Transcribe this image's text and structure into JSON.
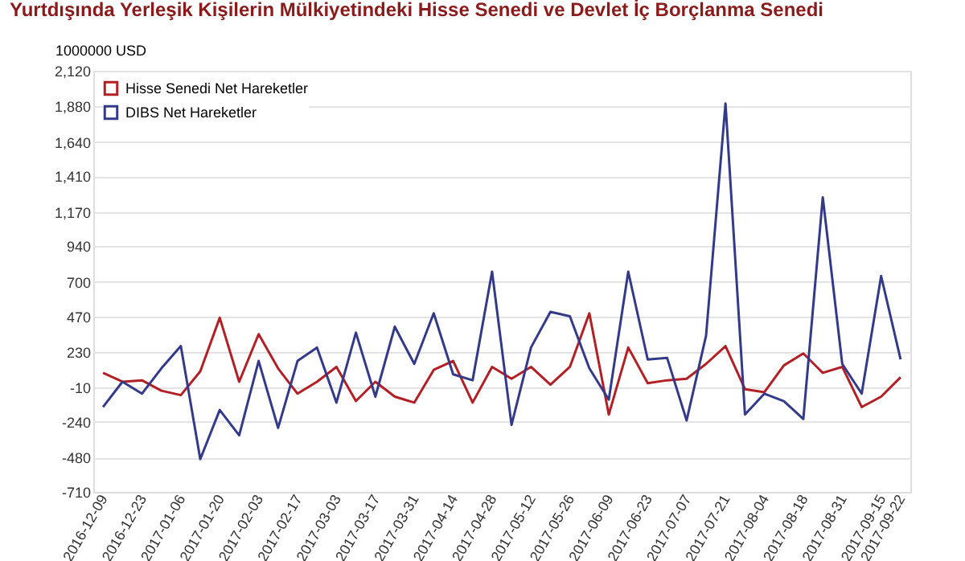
{
  "chart_data": {
    "type": "line",
    "title": "Yurtdışında Yerleşik Kişilerin Mülkiyetindeki Hisse Senedi ve Devlet İç Borçlanma Senedi",
    "ylabel": "1000000 USD",
    "categories": [
      "2016-12-09",
      null,
      "2016-12-23",
      null,
      "2017-01-06",
      null,
      "2017-01-20",
      null,
      "2017-02-03",
      null,
      "2017-02-17",
      null,
      "2017-03-03",
      null,
      "2017-03-17",
      null,
      "2017-03-31",
      null,
      "2017-04-14",
      null,
      "2017-04-28",
      null,
      "2017-05-12",
      null,
      "2017-05-26",
      null,
      "2017-06-09",
      null,
      "2017-06-23",
      null,
      "2017-07-07",
      null,
      "2017-07-21",
      null,
      "2017-08-04",
      null,
      "2017-08-18",
      null,
      "2017-08-31",
      null,
      "2017-09-15",
      "2017-09-22"
    ],
    "series": [
      {
        "name": "Hisse Senedi Net Hareketler",
        "color": "#b22025",
        "values": [
          90,
          30,
          40,
          -30,
          -60,
          100,
          460,
          30,
          350,
          120,
          -50,
          30,
          130,
          -100,
          30,
          -70,
          -110,
          110,
          170,
          -110,
          130,
          50,
          130,
          10,
          130,
          490,
          -190,
          260,
          20,
          40,
          50,
          150,
          270,
          -20,
          -40,
          140,
          220,
          90,
          130,
          -140,
          -70,
          60
        ]
      },
      {
        "name": "DIBS Net Hareketler",
        "color": "#333a8a",
        "values": [
          -140,
          30,
          -50,
          120,
          270,
          -490,
          -160,
          -330,
          170,
          -280,
          170,
          260,
          -110,
          360,
          -70,
          400,
          150,
          490,
          80,
          40,
          770,
          -260,
          260,
          500,
          470,
          120,
          -90,
          770,
          180,
          190,
          -230,
          340,
          1900,
          -190,
          -50,
          -100,
          -220,
          1270,
          150,
          -50,
          740,
          180
        ]
      }
    ],
    "ylim": [
      -710,
      2120
    ],
    "yticks": [
      -710,
      -480,
      -240,
      -10,
      230,
      470,
      700,
      940,
      {
        "value": 1170,
        "label": "1,170"
      },
      {
        "value": 1410,
        "label": "1,410"
      },
      {
        "value": 1640,
        "label": "1,640"
      },
      {
        "value": 1880,
        "label": "1,880"
      },
      {
        "value": 2120,
        "label": "2,120"
      }
    ],
    "grid": "y",
    "legend": "top left"
  }
}
